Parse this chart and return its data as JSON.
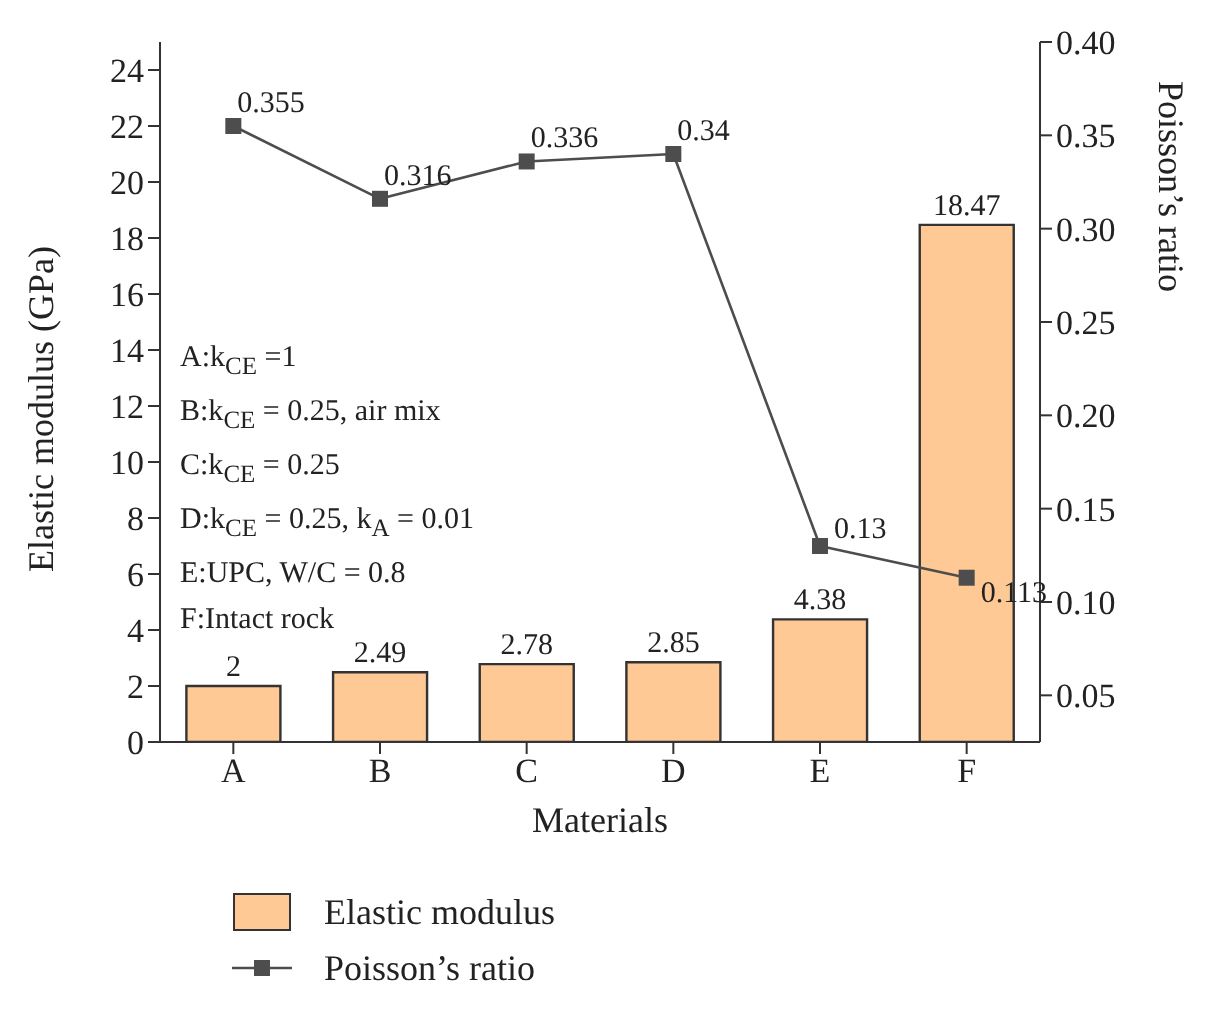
{
  "chart_data": {
    "type": "bar",
    "xlabel": "Materials",
    "ylabel": "Elastic modulus (GPa)",
    "y2label": "Poisson’s ratio",
    "categories": [
      "A",
      "B",
      "C",
      "D",
      "E",
      "F"
    ],
    "series": [
      {
        "name": "Elastic modulus",
        "color": "#fec994",
        "values": [
          2,
          2.49,
          2.78,
          2.85,
          4.38,
          18.47
        ]
      },
      {
        "name": "Poisson’s ratio",
        "type": "line",
        "axis": "y2",
        "color": "#4d4d4d",
        "values": [
          0.355,
          0.316,
          0.336,
          0.34,
          0.13,
          0.113
        ]
      }
    ],
    "ylim": [
      0,
      25
    ],
    "yticks": [
      0,
      2,
      4,
      6,
      8,
      10,
      12,
      14,
      16,
      18,
      20,
      22,
      24
    ],
    "y2lim": [
      0.025,
      0.4
    ],
    "y2ticks": [
      {
        "value": 0.05,
        "label": "0.05"
      },
      {
        "value": 0.1,
        "label": "0.10"
      },
      {
        "value": 0.15,
        "label": "0.15"
      },
      {
        "value": 0.2,
        "label": "0.20"
      },
      {
        "value": 0.25,
        "label": "0.25"
      },
      {
        "value": 0.3,
        "label": "0.30"
      },
      {
        "value": 0.35,
        "label": "0.35"
      },
      {
        "value": 0.4,
        "label": "0.40"
      }
    ],
    "data_labels": true,
    "grid": false,
    "legend": "bottom",
    "marker": "square",
    "line_style": "solid",
    "annotations": [
      "A:k$_{CE}$ =1",
      "B:k$_{CE}$ = 0.25, air mix",
      "C:k$_{CE}$ = 0.25",
      "D:k$_{CE}$ = 0.25, k$_{A}$ = 0.01",
      "E:UPC, W/C = 0.8",
      "F:Intact rock"
    ]
  }
}
